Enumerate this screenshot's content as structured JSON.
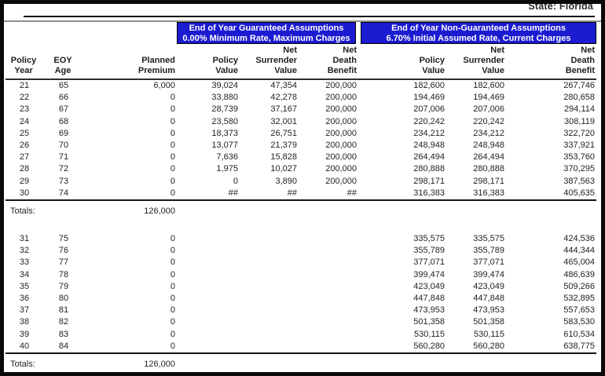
{
  "colors": {
    "banner_bg": "#1b1bd1",
    "banner_text": "#ffffff"
  },
  "header": {
    "state_label": "State: Florida"
  },
  "banners": {
    "guaranteed": {
      "line1": "End of Year Guaranteed Assumptions",
      "line2": "0.00% Minimum Rate, Maximum Charges"
    },
    "non_guaranteed": {
      "line1": "End of Year Non-Guaranteed Assumptions",
      "line2": "6.70% Initial Assumed Rate, Current Charges"
    }
  },
  "table": {
    "headers": [
      "Policy\nYear",
      "EOY\nAge",
      "Planned\nPremium",
      "Policy\nValue",
      "Net\nSurrender\nValue",
      "Net\nDeath\nBenefit",
      "Policy\nValue",
      "Net\nSurrender\nValue",
      "Net\nDeath\nBenefit"
    ],
    "rows_block1": [
      [
        "21",
        "65",
        "6,000",
        "39,024",
        "47,354",
        "200,000",
        "182,600",
        "182,600",
        "267,746"
      ],
      [
        "22",
        "66",
        "0",
        "33,880",
        "42,278",
        "200,000",
        "194,469",
        "194,469",
        "280,658"
      ],
      [
        "23",
        "67",
        "0",
        "28,739",
        "37,167",
        "200,000",
        "207,006",
        "207,006",
        "294,114"
      ],
      [
        "24",
        "68",
        "0",
        "23,580",
        "32,001",
        "200,000",
        "220,242",
        "220,242",
        "308,119"
      ],
      [
        "25",
        "69",
        "0",
        "18,373",
        "26,751",
        "200,000",
        "234,212",
        "234,212",
        "322,720"
      ],
      [
        "26",
        "70",
        "0",
        "13,077",
        "21,379",
        "200,000",
        "248,948",
        "248,948",
        "337,921"
      ],
      [
        "27",
        "71",
        "0",
        "7,636",
        "15,828",
        "200,000",
        "264,494",
        "264,494",
        "353,760"
      ],
      [
        "28",
        "72",
        "0",
        "1,975",
        "10,027",
        "200,000",
        "280,888",
        "280,888",
        "370,295"
      ],
      [
        "29",
        "73",
        "0",
        "0",
        "3,890",
        "200,000",
        "298,171",
        "298,171",
        "387,563"
      ],
      [
        "30",
        "74",
        "0",
        "##",
        "##",
        "##",
        "316,383",
        "316,383",
        "405,635"
      ]
    ],
    "totals1": {
      "label": "Totals:",
      "planned_premium": "126,000"
    },
    "rows_block2": [
      [
        "31",
        "75",
        "0",
        "",
        "",
        "",
        "335,575",
        "335,575",
        "424,536"
      ],
      [
        "32",
        "76",
        "0",
        "",
        "",
        "",
        "355,789",
        "355,789",
        "444,344"
      ],
      [
        "33",
        "77",
        "0",
        "",
        "",
        "",
        "377,071",
        "377,071",
        "465,004"
      ],
      [
        "34",
        "78",
        "0",
        "",
        "",
        "",
        "399,474",
        "399,474",
        "486,639"
      ],
      [
        "35",
        "79",
        "0",
        "",
        "",
        "",
        "423,049",
        "423,049",
        "509,266"
      ],
      [
        "36",
        "80",
        "0",
        "",
        "",
        "",
        "447,848",
        "447,848",
        "532,895"
      ],
      [
        "37",
        "81",
        "0",
        "",
        "",
        "",
        "473,953",
        "473,953",
        "557,653"
      ],
      [
        "38",
        "82",
        "0",
        "",
        "",
        "",
        "501,358",
        "501,358",
        "583,530"
      ],
      [
        "39",
        "83",
        "0",
        "",
        "",
        "",
        "530,115",
        "530,115",
        "610,534"
      ],
      [
        "40",
        "84",
        "0",
        "",
        "",
        "",
        "560,280",
        "560,280",
        "638,775"
      ]
    ],
    "totals2": {
      "label": "Totals:",
      "planned_premium": "126,000"
    }
  }
}
